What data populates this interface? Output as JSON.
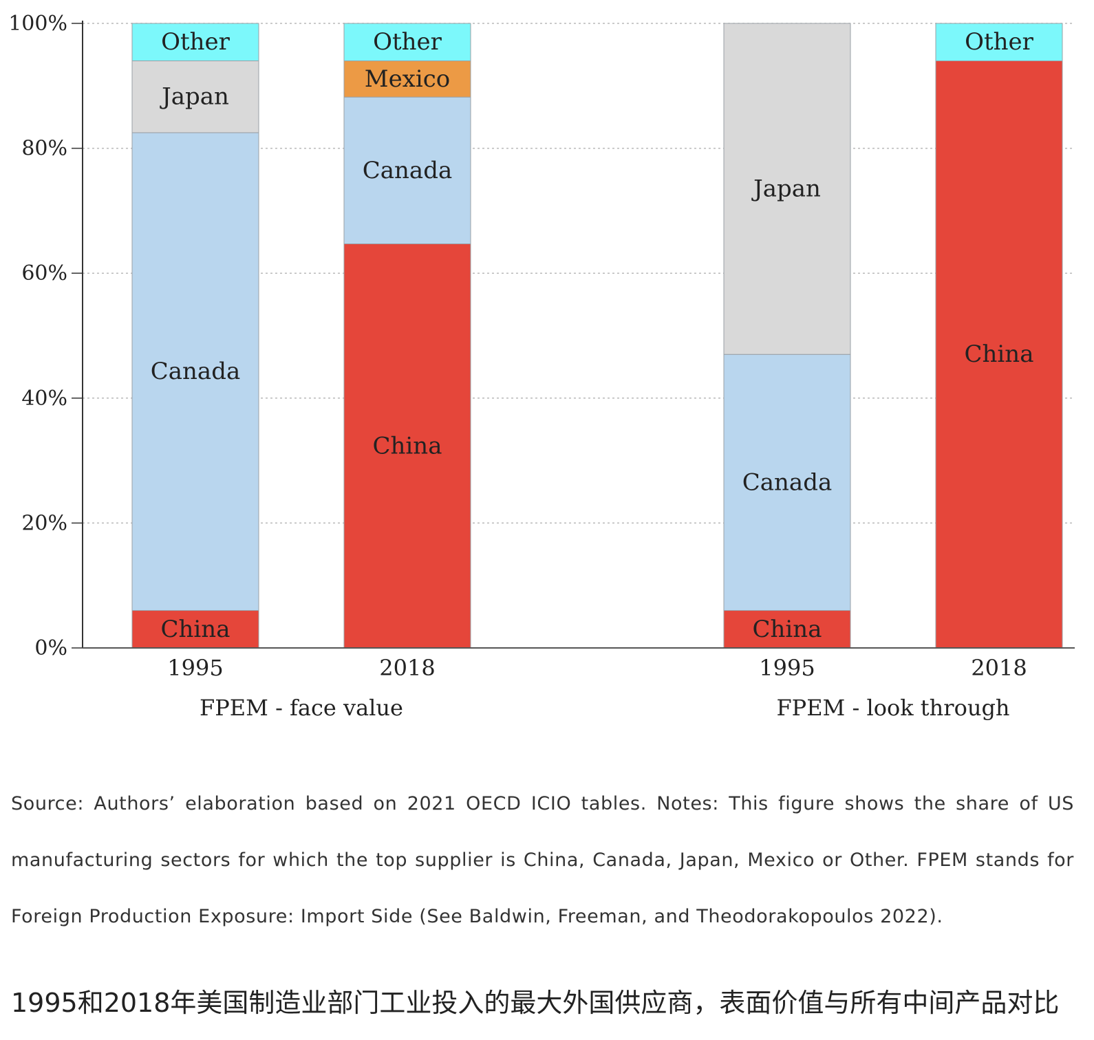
{
  "chart_data": {
    "type": "bar",
    "stacked": true,
    "percent": true,
    "ylim": [
      0,
      100
    ],
    "yticks": [
      "0%",
      "20%",
      "40%",
      "60%",
      "80%",
      "100%"
    ],
    "grid": true,
    "legend": "none (segments labeled inline)",
    "colors": {
      "China": "#e5463a",
      "Canada": "#b9d6ee",
      "Japan": "#d9d9d9",
      "Mexico": "#ec9a45",
      "Other": "#7cf8fb"
    },
    "groups": [
      {
        "label": "FPEM - face value",
        "bars": [
          {
            "category": "1995",
            "segments": [
              {
                "name": "China",
                "value": 6
              },
              {
                "name": "Canada",
                "value": 76.5
              },
              {
                "name": "Japan",
                "value": 11.5
              },
              {
                "name": "Other",
                "value": 6
              }
            ]
          },
          {
            "category": "2018",
            "segments": [
              {
                "name": "China",
                "value": 64.7
              },
              {
                "name": "Canada",
                "value": 23.5
              },
              {
                "name": "Mexico",
                "value": 5.8
              },
              {
                "name": "Other",
                "value": 6
              }
            ]
          }
        ]
      },
      {
        "label": "FPEM - look through",
        "bars": [
          {
            "category": "1995",
            "segments": [
              {
                "name": "China",
                "value": 6
              },
              {
                "name": "Canada",
                "value": 41
              },
              {
                "name": "Japan",
                "value": 53
              }
            ]
          },
          {
            "category": "2018",
            "segments": [
              {
                "name": "China",
                "value": 94
              },
              {
                "name": "Other",
                "value": 6
              }
            ]
          }
        ]
      }
    ]
  },
  "notes": "Source: Authors’  elaboration based on 2021 OECD ICIO tables. Notes: This figure shows the share of US manufacturing sectors for which the top supplier is China, Canada, Japan, Mexico or Other. FPEM stands for Foreign Production Exposure: Import Side (See Baldwin, Freeman, and Theodorakopoulos 2022).",
  "caption": "1995和2018年美国制造业部门工业投入的最大外国供应商，表面价值与所有中间产品对比"
}
